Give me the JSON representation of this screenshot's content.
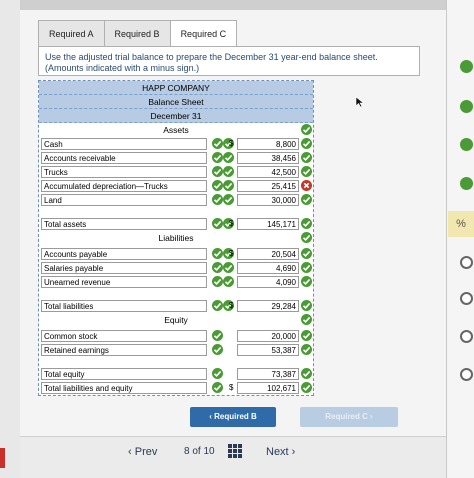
{
  "tabs": [
    "Required A",
    "Required B",
    "Required C"
  ],
  "instructions": "Use the adjusted trial balance to prepare the December 31 year-end balance sheet. (Amounts indicated with a minus sign.)",
  "sheet": {
    "company": "HAPP COMPANY",
    "title": "Balance Sheet",
    "date": "December 31",
    "assets_heading": "Assets",
    "liabilities_heading": "Liabilities",
    "equity_heading": "Equity",
    "assets": [
      {
        "label": "Cash",
        "dollar": "$",
        "value": "8,800",
        "status": "correct"
      },
      {
        "label": "Accounts receivable",
        "dollar": "",
        "value": "38,456",
        "status": "correct"
      },
      {
        "label": "Trucks",
        "dollar": "",
        "value": "42,500",
        "status": "correct"
      },
      {
        "label": "Accumulated depreciation—Trucks",
        "dollar": "",
        "value": "25,415",
        "status": "incorrect"
      },
      {
        "label": "Land",
        "dollar": "",
        "value": "30,000",
        "status": "correct"
      }
    ],
    "total_assets": {
      "label": "Total assets",
      "dollar": "$",
      "value": "145,171"
    },
    "liabilities": [
      {
        "label": "Accounts payable",
        "dollar": "$",
        "value": "20,504"
      },
      {
        "label": "Salaries payable",
        "dollar": "",
        "value": "4,690"
      },
      {
        "label": "Unearned revenue",
        "dollar": "",
        "value": "4,090"
      }
    ],
    "total_liabilities": {
      "label": "Total liabilities",
      "dollar": "$",
      "value": "29,284"
    },
    "equity": [
      {
        "label": "Common stock",
        "dollar": "",
        "value": "20,000"
      },
      {
        "label": "Retained earnings",
        "dollar": "",
        "value": "53,387"
      }
    ],
    "total_equity": {
      "label": "Total equity",
      "dollar": "",
      "value": "73,387"
    },
    "total_liab_equity": {
      "label": "Total liabilities and equity",
      "dollar": "$",
      "value": "102,671"
    }
  },
  "buttons": {
    "prev_req": "Required B",
    "next_req": "Required C"
  },
  "footer": {
    "prev": "Prev",
    "page": "8",
    "of": "of",
    "total": "10",
    "next": "Next"
  },
  "side_label": "%",
  "colors": {
    "correct": "#4a9a35",
    "incorrect": "#c0392b",
    "accent": "#2e6ba8"
  }
}
